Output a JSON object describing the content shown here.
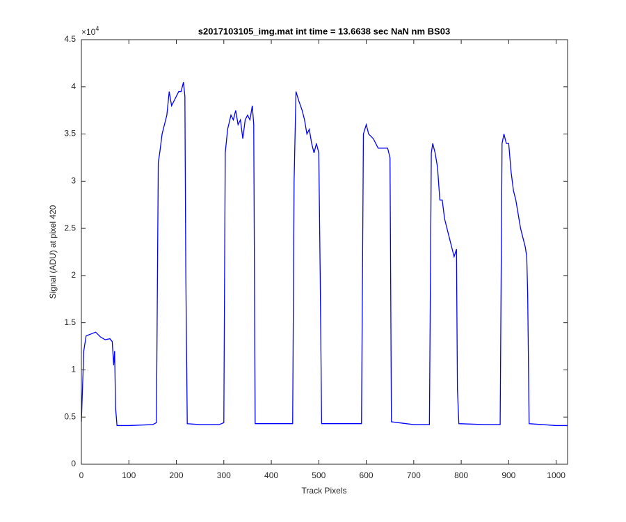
{
  "chart_data": {
    "type": "line",
    "title": "s2017103105_img.mat int time = 13.6638 sec  NaN nm BS03",
    "x_label": "Track Pixels",
    "y_label": "Signal (ADU) at pixel 420",
    "y_multiplier": {
      "base": "×10",
      "exponent": "4"
    },
    "xlim": [
      0,
      1024
    ],
    "ylim": [
      0,
      4.5
    ],
    "xticks": [
      0,
      100,
      200,
      300,
      400,
      500,
      600,
      700,
      800,
      900,
      1000
    ],
    "yticks": [
      0,
      0.5,
      1,
      1.5,
      2,
      2.5,
      3,
      3.5,
      4,
      4.5
    ],
    "grid": false,
    "series": [
      {
        "name": "signal",
        "color": "#0000ff",
        "x": [
          0,
          5,
          10,
          20,
          30,
          40,
          50,
          60,
          65,
          68,
          70,
          72,
          75,
          100,
          150,
          158,
          162,
          165,
          170,
          175,
          180,
          185,
          190,
          195,
          200,
          205,
          210,
          215,
          218,
          220,
          223,
          250,
          290,
          300,
          303,
          308,
          315,
          320,
          325,
          330,
          335,
          340,
          345,
          350,
          355,
          360,
          363,
          366,
          400,
          445,
          448,
          452,
          458,
          465,
          470,
          475,
          480,
          485,
          490,
          495,
          500,
          503,
          506,
          550,
          590,
          594,
          600,
          605,
          615,
          625,
          635,
          645,
          650,
          653,
          700,
          733,
          737,
          740,
          745,
          750,
          755,
          760,
          765,
          770,
          775,
          780,
          785,
          790,
          792,
          795,
          850,
          882,
          886,
          890,
          895,
          900,
          905,
          910,
          915,
          920,
          925,
          930,
          935,
          938,
          940,
          943,
          1000,
          1024
        ],
        "values": [
          0.45,
          1.2,
          1.36,
          1.38,
          1.4,
          1.35,
          1.32,
          1.33,
          1.3,
          1.05,
          1.2,
          0.6,
          0.41,
          0.41,
          0.42,
          0.44,
          3.2,
          3.3,
          3.5,
          3.6,
          3.7,
          3.95,
          3.8,
          3.85,
          3.9,
          3.95,
          3.95,
          4.05,
          3.9,
          2.0,
          0.43,
          0.42,
          0.42,
          0.44,
          3.3,
          3.55,
          3.7,
          3.65,
          3.75,
          3.6,
          3.65,
          3.45,
          3.65,
          3.7,
          3.65,
          3.8,
          3.6,
          0.43,
          0.43,
          0.43,
          3.0,
          3.95,
          3.85,
          3.75,
          3.65,
          3.5,
          3.55,
          3.4,
          3.3,
          3.4,
          3.3,
          2.0,
          0.43,
          0.43,
          0.43,
          3.5,
          3.6,
          3.5,
          3.45,
          3.35,
          3.35,
          3.35,
          3.25,
          0.45,
          0.42,
          0.42,
          3.3,
          3.4,
          3.3,
          3.15,
          2.8,
          2.8,
          2.6,
          2.5,
          2.4,
          2.3,
          2.2,
          2.28,
          0.8,
          0.43,
          0.42,
          0.42,
          3.4,
          3.5,
          3.4,
          3.4,
          3.1,
          2.9,
          2.8,
          2.65,
          2.5,
          2.4,
          2.3,
          2.2,
          1.8,
          0.43,
          0.41,
          0.41
        ]
      }
    ]
  }
}
